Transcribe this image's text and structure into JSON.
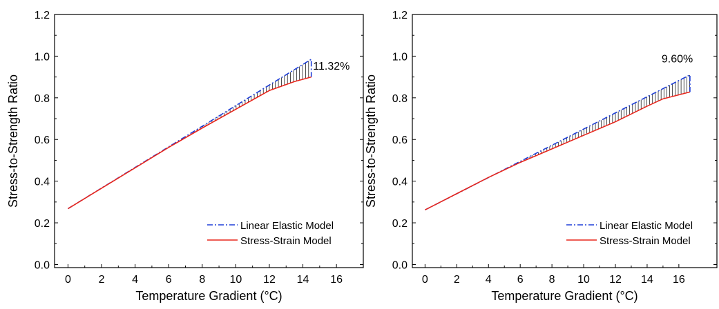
{
  "chart_data": [
    {
      "type": "line",
      "xlabel": "Temperature Gradient (°C)",
      "ylabel": "Stress-to-Strength Ratio",
      "xlim": [
        -0.8,
        17.6
      ],
      "ylim": [
        -0.015,
        1.2
      ],
      "xticks": [
        0,
        2,
        4,
        6,
        8,
        10,
        12,
        14,
        16
      ],
      "yticks": [
        0.0,
        0.2,
        0.4,
        0.6,
        0.8,
        1.0,
        1.2
      ],
      "xtick_labels": [
        "0",
        "2",
        "4",
        "6",
        "8",
        "10",
        "12",
        "14",
        "16"
      ],
      "ytick_labels": [
        "0.0",
        "0.2",
        "0.4",
        "0.6",
        "0.8",
        "1.0",
        "1.2"
      ],
      "legend_position": "bottom-right",
      "grid": false,
      "hatch_between_series": true,
      "annotation": {
        "text": "11.32%",
        "x": 15.7,
        "y": 0.935
      },
      "series": [
        {
          "name": "Linear Elastic Model",
          "color": "#1f3fd8",
          "style": "dash-dot",
          "x": [
            0,
            14.5,
            14.5
          ],
          "y": [
            0.268,
            0.985,
            0.9
          ]
        },
        {
          "name": "Stress-Strain Model",
          "color": "#e8261c",
          "style": "solid",
          "x": [
            0,
            2,
            4,
            6,
            8,
            10,
            12,
            13.5,
            14.5
          ],
          "y": [
            0.268,
            0.366,
            0.464,
            0.562,
            0.655,
            0.745,
            0.835,
            0.878,
            0.9
          ]
        }
      ]
    },
    {
      "type": "line",
      "xlabel": "Temperature Gradient (°C)",
      "ylabel": "Stress-to-Strength Ratio",
      "xlim": [
        -0.8,
        18.4
      ],
      "ylim": [
        -0.015,
        1.2
      ],
      "xticks": [
        0,
        2,
        4,
        6,
        8,
        10,
        12,
        14,
        16
      ],
      "yticks": [
        0.0,
        0.2,
        0.4,
        0.6,
        0.8,
        1.0,
        1.2
      ],
      "xtick_labels": [
        "0",
        "2",
        "4",
        "6",
        "8",
        "10",
        "12",
        "14",
        "16"
      ],
      "ytick_labels": [
        "0.0",
        "0.2",
        "0.4",
        "0.6",
        "0.8",
        "1.0",
        "1.2"
      ],
      "legend_position": "bottom-right",
      "grid": false,
      "hatch_between_series": true,
      "annotation": {
        "text": "9.60%",
        "x": 15.9,
        "y": 0.97
      },
      "series": [
        {
          "name": "Linear Elastic Model",
          "color": "#1f3fd8",
          "style": "dash-dot",
          "x": [
            0,
            16.7,
            16.7
          ],
          "y": [
            0.262,
            0.91,
            0.828
          ]
        },
        {
          "name": "Stress-Strain Model",
          "color": "#e8261c",
          "style": "solid",
          "x": [
            0,
            2,
            4,
            6,
            8,
            10,
            12,
            14,
            15,
            16.7
          ],
          "y": [
            0.262,
            0.34,
            0.418,
            0.49,
            0.555,
            0.62,
            0.685,
            0.76,
            0.795,
            0.828
          ]
        }
      ]
    }
  ]
}
